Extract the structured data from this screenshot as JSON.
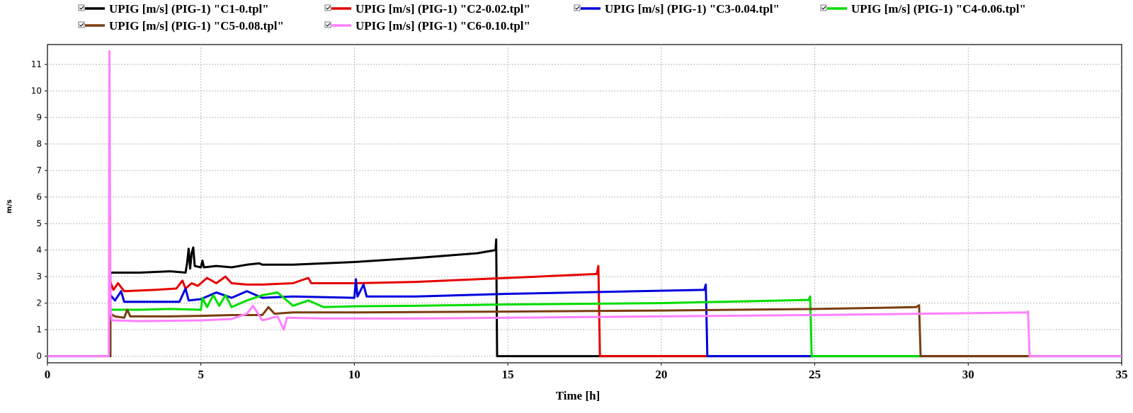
{
  "chart_data": {
    "type": "line",
    "xlabel": "Time [h]",
    "ylabel": "m/s",
    "xlim": [
      0,
      35
    ],
    "ylim": [
      -0.25,
      11.75
    ],
    "xticks": [
      0,
      5,
      10,
      15,
      20,
      25,
      30,
      35
    ],
    "yticks": [
      0,
      1,
      2,
      3,
      4,
      5,
      6,
      7,
      8,
      9,
      10,
      11
    ],
    "grid": true,
    "legend_position": "top",
    "series": [
      {
        "name": "UPIG [m/s] (PIG-1) \"C1-0.tpl\"",
        "color": "#000000",
        "points": [
          [
            0,
            0
          ],
          [
            2.05,
            0
          ],
          [
            2.05,
            3.15
          ],
          [
            3.0,
            3.15
          ],
          [
            4.0,
            3.2
          ],
          [
            4.5,
            3.15
          ],
          [
            4.55,
            3.5
          ],
          [
            4.6,
            4.05
          ],
          [
            4.65,
            3.3
          ],
          [
            4.7,
            3.9
          ],
          [
            4.75,
            4.1
          ],
          [
            4.8,
            3.4
          ],
          [
            5.0,
            3.35
          ],
          [
            5.05,
            3.6
          ],
          [
            5.1,
            3.35
          ],
          [
            5.5,
            3.4
          ],
          [
            6.0,
            3.35
          ],
          [
            6.5,
            3.45
          ],
          [
            6.9,
            3.5
          ],
          [
            7.0,
            3.45
          ],
          [
            8,
            3.45
          ],
          [
            10,
            3.55
          ],
          [
            12,
            3.7
          ],
          [
            14,
            3.88
          ],
          [
            14.6,
            4.0
          ],
          [
            14.62,
            4.4
          ],
          [
            14.65,
            0
          ],
          [
            35,
            0
          ]
        ]
      },
      {
        "name": "UPIG [m/s] (PIG-1) \"C2-0.02.tpl\"",
        "color": "#e60000",
        "points": [
          [
            2.05,
            0
          ],
          [
            2.05,
            2.8
          ],
          [
            2.15,
            2.5
          ],
          [
            2.3,
            2.75
          ],
          [
            2.5,
            2.45
          ],
          [
            3.5,
            2.5
          ],
          [
            4.2,
            2.55
          ],
          [
            4.4,
            2.85
          ],
          [
            4.5,
            2.55
          ],
          [
            4.7,
            2.75
          ],
          [
            4.9,
            2.65
          ],
          [
            5.2,
            2.95
          ],
          [
            5.5,
            2.75
          ],
          [
            5.8,
            3.0
          ],
          [
            6.0,
            2.75
          ],
          [
            6.5,
            2.7
          ],
          [
            7.0,
            2.7
          ],
          [
            8.0,
            2.75
          ],
          [
            8.5,
            2.95
          ],
          [
            8.6,
            2.75
          ],
          [
            10,
            2.75
          ],
          [
            12,
            2.8
          ],
          [
            15,
            2.95
          ],
          [
            17.9,
            3.1
          ],
          [
            17.95,
            3.4
          ],
          [
            18.0,
            0
          ],
          [
            21.5,
            0
          ]
        ]
      },
      {
        "name": "UPIG [m/s] (PIG-1) \"C3-0.04.tpl\"",
        "color": "#0000dd",
        "points": [
          [
            2.05,
            0
          ],
          [
            2.05,
            2.3
          ],
          [
            2.2,
            2.1
          ],
          [
            2.4,
            2.45
          ],
          [
            2.5,
            2.05
          ],
          [
            4.3,
            2.05
          ],
          [
            4.5,
            2.55
          ],
          [
            4.6,
            2.1
          ],
          [
            5.0,
            2.15
          ],
          [
            5.5,
            2.4
          ],
          [
            6.0,
            2.2
          ],
          [
            6.5,
            2.45
          ],
          [
            7.0,
            2.2
          ],
          [
            8.0,
            2.25
          ],
          [
            10.0,
            2.2
          ],
          [
            10.05,
            2.9
          ],
          [
            10.1,
            2.25
          ],
          [
            10.3,
            2.7
          ],
          [
            10.4,
            2.25
          ],
          [
            12,
            2.25
          ],
          [
            15,
            2.35
          ],
          [
            18,
            2.42
          ],
          [
            21.4,
            2.5
          ],
          [
            21.45,
            2.7
          ],
          [
            21.5,
            0
          ],
          [
            25,
            0
          ]
        ]
      },
      {
        "name": "UPIG [m/s] (PIG-1) \"C4-0.06.tpl\"",
        "color": "#00dd00",
        "points": [
          [
            2.05,
            0
          ],
          [
            2.05,
            1.75
          ],
          [
            3.0,
            1.75
          ],
          [
            4.0,
            1.78
          ],
          [
            5.0,
            1.75
          ],
          [
            5.05,
            2.2
          ],
          [
            5.2,
            1.85
          ],
          [
            5.4,
            2.3
          ],
          [
            5.6,
            1.9
          ],
          [
            5.8,
            2.3
          ],
          [
            6.0,
            1.85
          ],
          [
            6.5,
            2.1
          ],
          [
            7.0,
            2.3
          ],
          [
            7.5,
            2.4
          ],
          [
            8.0,
            1.9
          ],
          [
            8.5,
            2.1
          ],
          [
            9.0,
            1.85
          ],
          [
            10,
            1.88
          ],
          [
            12,
            1.9
          ],
          [
            15,
            1.95
          ],
          [
            20,
            2.0
          ],
          [
            24.8,
            2.12
          ],
          [
            24.85,
            2.25
          ],
          [
            24.9,
            0
          ],
          [
            28.5,
            0
          ]
        ]
      },
      {
        "name": "UPIG [m/s] (PIG-1) \"C5-0.08.tpl\"",
        "color": "#7a3d0f",
        "points": [
          [
            2.05,
            0
          ],
          [
            2.05,
            1.6
          ],
          [
            2.2,
            1.5
          ],
          [
            2.5,
            1.45
          ],
          [
            2.6,
            1.75
          ],
          [
            2.7,
            1.5
          ],
          [
            4.0,
            1.5
          ],
          [
            5.0,
            1.52
          ],
          [
            6.0,
            1.55
          ],
          [
            7.0,
            1.55
          ],
          [
            7.2,
            1.85
          ],
          [
            7.4,
            1.6
          ],
          [
            8.0,
            1.65
          ],
          [
            10,
            1.65
          ],
          [
            15,
            1.68
          ],
          [
            20,
            1.72
          ],
          [
            25,
            1.78
          ],
          [
            28.3,
            1.85
          ],
          [
            28.4,
            1.92
          ],
          [
            28.45,
            0
          ],
          [
            32,
            0
          ]
        ]
      },
      {
        "name": "UPIG [m/s] (PIG-1) \"C6-0.10.tpl\"",
        "color": "#ff80ff",
        "points": [
          [
            0,
            0
          ],
          [
            2.0,
            0
          ],
          [
            2.02,
            11.5
          ],
          [
            2.05,
            1.8
          ],
          [
            2.1,
            1.35
          ],
          [
            3.0,
            1.32
          ],
          [
            5.0,
            1.35
          ],
          [
            6.0,
            1.4
          ],
          [
            6.5,
            1.6
          ],
          [
            6.7,
            1.9
          ],
          [
            7.0,
            1.35
          ],
          [
            7.5,
            1.5
          ],
          [
            7.7,
            1.0
          ],
          [
            7.8,
            1.45
          ],
          [
            9,
            1.42
          ],
          [
            12,
            1.42
          ],
          [
            15,
            1.45
          ],
          [
            20,
            1.5
          ],
          [
            25,
            1.55
          ],
          [
            31.9,
            1.65
          ],
          [
            31.95,
            1.68
          ],
          [
            32.0,
            0
          ],
          [
            35,
            0
          ]
        ]
      }
    ]
  }
}
